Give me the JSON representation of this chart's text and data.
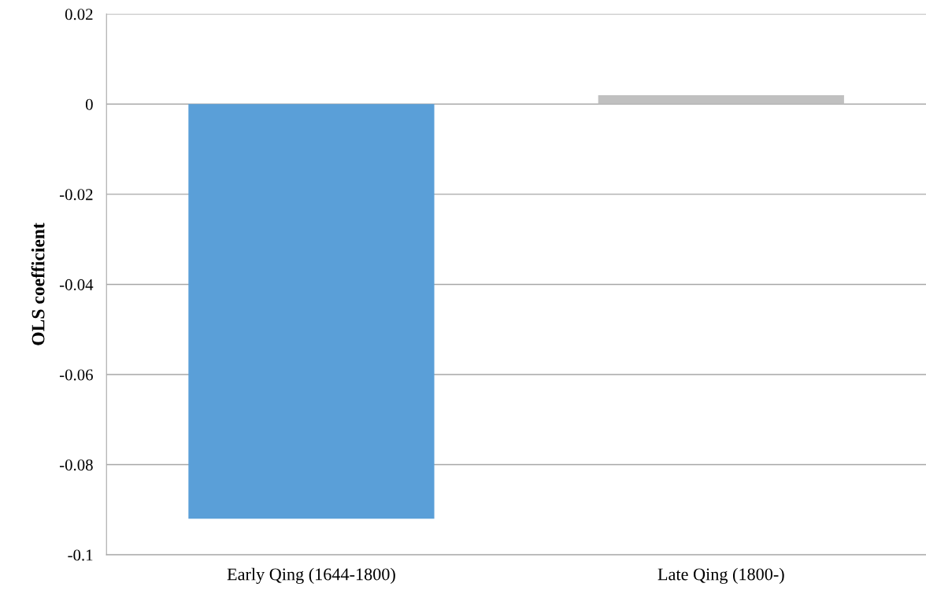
{
  "chart_data": {
    "type": "bar",
    "ylabel": "OLS coefficient",
    "categories": [
      "Early Qing (1644-1800)",
      "Late Qing (1800-)"
    ],
    "values": [
      -0.092,
      0.002
    ],
    "colors": [
      "#5a9fd8",
      "#c0c0c0"
    ],
    "ylim": [
      -0.1,
      0.02
    ],
    "yticks": [
      -0.1,
      -0.08,
      -0.06,
      -0.04,
      -0.02,
      0,
      0.02
    ],
    "grid": "y",
    "legend": false
  }
}
